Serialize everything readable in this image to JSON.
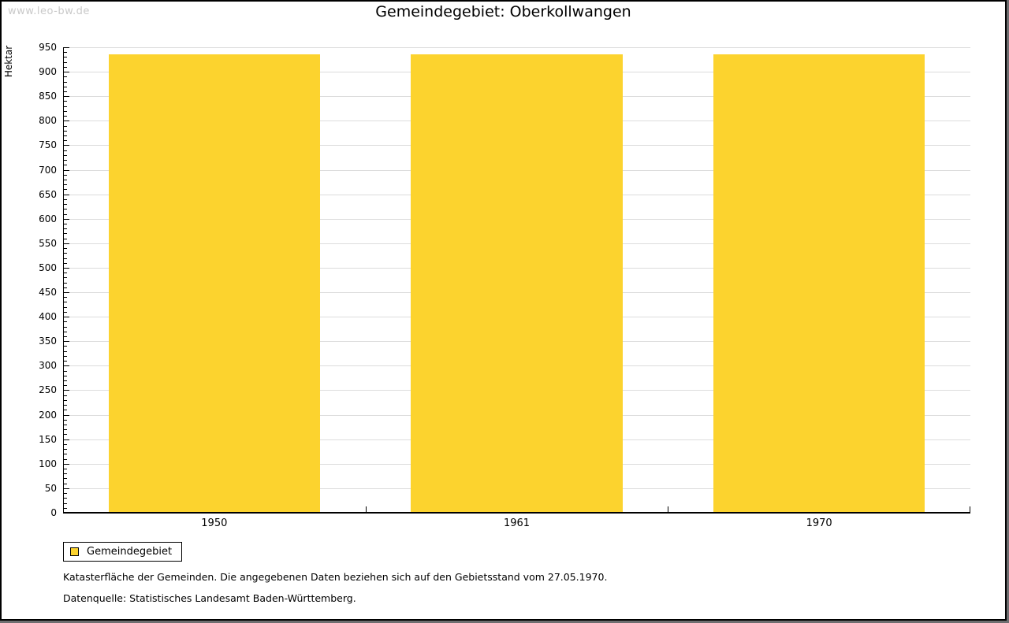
{
  "watermark": "www.leo-bw.de",
  "chart_data": {
    "type": "bar",
    "title": "Gemeindegebiet: Oberkollwangen",
    "ylabel": "Hektar",
    "xlabel": "",
    "categories": [
      "1950",
      "1961",
      "1970"
    ],
    "series": [
      {
        "name": "Gemeindegebiet",
        "color": "#fcd32e",
        "values": [
          935,
          935,
          935
        ]
      }
    ],
    "ylim": [
      0,
      950
    ],
    "y_major_step": 50,
    "y_minor_step": 10,
    "grid": "horizontal-major",
    "legend_position": "bottom-left",
    "bar_width_fraction": 0.7
  },
  "notes": {
    "line1": "Katasterfläche der Gemeinden. Die angegebenen Daten beziehen sich auf den Gebietsstand vom 27.05.1970.",
    "line2": "Datenquelle: Statistisches Landesamt Baden-Württemberg."
  },
  "colors": {
    "bar": "#fcd32e",
    "gridline": "#dcdcdc",
    "axis": "#000000",
    "watermark": "#c9c9c9",
    "frame_shadow": "#6e6e70"
  }
}
